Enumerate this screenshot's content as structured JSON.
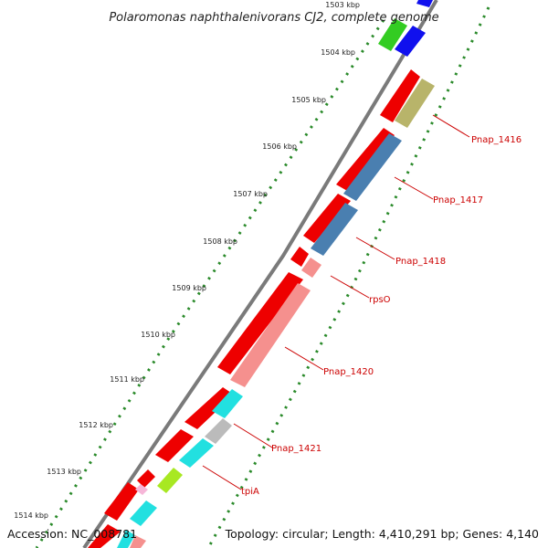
{
  "title": "Polaromonas naphthalenivorans CJ2, complete genome",
  "footer": {
    "accession": "Accession: NC_008781",
    "summary": "Topology: circular; Length: 4,410,291 bp; Genes: 4,140"
  },
  "colors": {
    "backbone": "#777777",
    "tick": "#2a8a2a",
    "forward_gene": "#ff0000",
    "label": "#cc0000"
  },
  "kbp_ticks": [
    "1503 kbp",
    "1504 kbp",
    "1505 kbp",
    "1506 kbp",
    "1507 kbp",
    "1508 kbp",
    "1509 kbp",
    "1510 kbp",
    "1511 kbp",
    "1512 kbp",
    "1513 kbp",
    "1514 kbp"
  ],
  "gene_labels": [
    "Pnap_1416",
    "Pnap_1417",
    "Pnap_1418",
    "rpsO",
    "Pnap_1420",
    "Pnap_1421",
    "tpiA"
  ]
}
